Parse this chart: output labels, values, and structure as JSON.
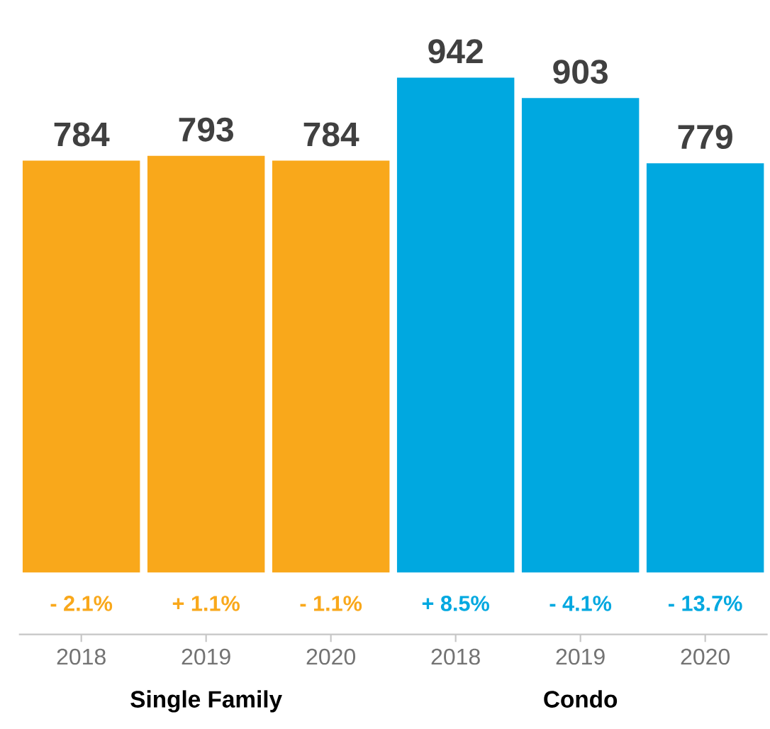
{
  "chart_data": {
    "type": "bar",
    "categories": [
      "2018",
      "2019",
      "2020",
      "2018",
      "2019",
      "2020"
    ],
    "series": [
      {
        "color": "#f9a81b",
        "values": [
          784,
          793,
          784,
          null,
          null,
          null
        ]
      },
      {
        "color": "#00a8e0",
        "values": [
          null,
          null,
          null,
          942,
          903,
          779
        ]
      }
    ],
    "data_labels": true,
    "annotations": [
      "- 2.1%",
      "+ 1.1%",
      "- 1.1%",
      "+ 8.5%",
      "- 4.1%",
      "- 13.7%",
      "Single Family",
      "Condo"
    ]
  }
}
